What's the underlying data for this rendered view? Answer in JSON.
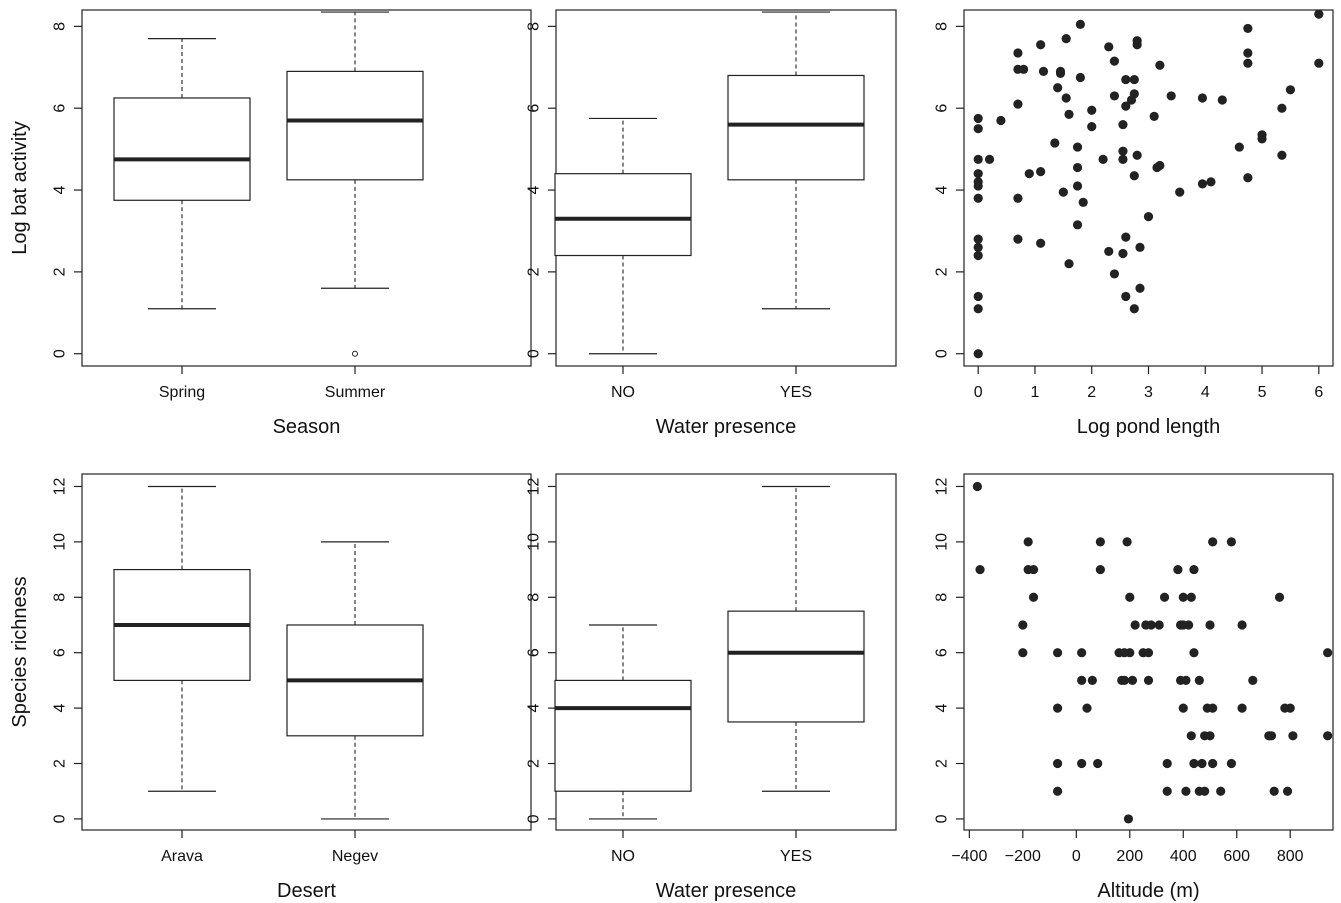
{
  "chart_data": [
    {
      "type": "box",
      "xlabel": "Season",
      "ylabel": "Log bat activity",
      "ylim": [
        -0.3,
        8.4
      ],
      "yticks": [
        0,
        2,
        4,
        6,
        8
      ],
      "ytick_labels": [
        "0",
        "2",
        "4",
        "6",
        "8"
      ],
      "categories": [
        "Spring",
        "Summer"
      ],
      "boxes": [
        {
          "whisker_low": 1.1,
          "q1": 3.75,
          "median": 4.75,
          "q3": 6.25,
          "whisker_high": 7.7,
          "outliers": []
        },
        {
          "whisker_low": 1.6,
          "q1": 4.25,
          "median": 5.7,
          "q3": 6.9,
          "whisker_high": 8.35,
          "outliers": [
            0.0
          ]
        }
      ]
    },
    {
      "type": "box",
      "xlabel": "Water presence",
      "ylabel": "",
      "ylim": [
        -0.3,
        8.4
      ],
      "yticks": [
        0,
        2,
        4,
        6,
        8
      ],
      "ytick_labels": [
        "0",
        "2",
        "4",
        "6",
        "8"
      ],
      "categories": [
        "NO",
        "YES"
      ],
      "boxes": [
        {
          "whisker_low": 0.0,
          "q1": 2.4,
          "median": 3.3,
          "q3": 4.4,
          "whisker_high": 5.75,
          "outliers": []
        },
        {
          "whisker_low": 1.1,
          "q1": 4.25,
          "median": 5.6,
          "q3": 6.8,
          "whisker_high": 8.35,
          "outliers": []
        }
      ]
    },
    {
      "type": "scatter",
      "xlabel": "Log pond length",
      "ylabel": "",
      "xlim": [
        -0.25,
        6.25
      ],
      "ylim": [
        -0.3,
        8.4
      ],
      "xticks": [
        0,
        1,
        2,
        3,
        4,
        5,
        6
      ],
      "xtick_labels": [
        "0",
        "1",
        "2",
        "3",
        "4",
        "5",
        "6"
      ],
      "yticks": [
        0,
        2,
        4,
        6,
        8
      ],
      "ytick_labels": [
        "0",
        "2",
        "4",
        "6",
        "8"
      ],
      "points": [
        [
          0,
          0
        ],
        [
          0,
          1.1
        ],
        [
          0,
          1.4
        ],
        [
          0,
          2.4
        ],
        [
          0,
          2.6
        ],
        [
          0,
          2.8
        ],
        [
          0,
          3.8
        ],
        [
          0,
          4.1
        ],
        [
          0,
          4.2
        ],
        [
          0,
          4.4
        ],
        [
          0,
          4.75
        ],
        [
          0,
          5.5
        ],
        [
          0,
          5.75
        ],
        [
          0.2,
          4.75
        ],
        [
          0.4,
          5.7
        ],
        [
          0.7,
          2.8
        ],
        [
          0.7,
          3.8
        ],
        [
          0.7,
          6.1
        ],
        [
          0.7,
          6.95
        ],
        [
          0.8,
          6.95
        ],
        [
          0.7,
          7.35
        ],
        [
          0.9,
          4.4
        ],
        [
          1.1,
          2.7
        ],
        [
          1.1,
          4.45
        ],
        [
          1.1,
          7.55
        ],
        [
          1.15,
          6.9
        ],
        [
          1.35,
          5.15
        ],
        [
          1.4,
          6.5
        ],
        [
          1.45,
          6.85
        ],
        [
          1.45,
          6.9
        ],
        [
          1.5,
          3.95
        ],
        [
          1.55,
          6.25
        ],
        [
          1.55,
          7.7
        ],
        [
          1.6,
          5.85
        ],
        [
          1.6,
          2.2
        ],
        [
          1.75,
          3.15
        ],
        [
          1.75,
          4.1
        ],
        [
          1.75,
          4.55
        ],
        [
          1.75,
          5.05
        ],
        [
          1.8,
          6.75
        ],
        [
          1.8,
          8.05
        ],
        [
          1.85,
          3.7
        ],
        [
          2.0,
          5.55
        ],
        [
          2.0,
          5.95
        ],
        [
          2.2,
          4.75
        ],
        [
          2.3,
          2.5
        ],
        [
          2.3,
          7.5
        ],
        [
          2.4,
          1.95
        ],
        [
          2.4,
          6.3
        ],
        [
          2.4,
          7.15
        ],
        [
          2.55,
          2.45
        ],
        [
          2.55,
          4.75
        ],
        [
          2.55,
          4.95
        ],
        [
          2.55,
          5.6
        ],
        [
          2.6,
          1.4
        ],
        [
          2.6,
          2.85
        ],
        [
          2.6,
          6.05
        ],
        [
          2.6,
          6.7
        ],
        [
          2.7,
          6.2
        ],
        [
          2.75,
          1.1
        ],
        [
          2.75,
          4.35
        ],
        [
          2.75,
          6.35
        ],
        [
          2.75,
          6.7
        ],
        [
          2.8,
          4.85
        ],
        [
          2.8,
          7.55
        ],
        [
          2.8,
          7.65
        ],
        [
          2.85,
          1.6
        ],
        [
          2.85,
          2.6
        ],
        [
          3.0,
          3.35
        ],
        [
          3.1,
          5.8
        ],
        [
          3.15,
          4.55
        ],
        [
          3.2,
          4.6
        ],
        [
          3.2,
          7.05
        ],
        [
          3.4,
          6.3
        ],
        [
          3.55,
          3.95
        ],
        [
          3.95,
          4.15
        ],
        [
          3.95,
          6.25
        ],
        [
          4.1,
          4.2
        ],
        [
          4.3,
          6.2
        ],
        [
          4.6,
          5.05
        ],
        [
          4.75,
          4.3
        ],
        [
          4.75,
          7.1
        ],
        [
          4.75,
          7.35
        ],
        [
          4.75,
          7.95
        ],
        [
          5.0,
          5.25
        ],
        [
          5.0,
          5.35
        ],
        [
          5.35,
          4.85
        ],
        [
          5.35,
          6.0
        ],
        [
          5.5,
          6.45
        ],
        [
          6.0,
          7.1
        ],
        [
          6.0,
          8.3
        ]
      ]
    },
    {
      "type": "box",
      "xlabel": "Desert",
      "ylabel": "Species richness",
      "ylim": [
        -0.4,
        12.45
      ],
      "yticks": [
        0,
        2,
        4,
        6,
        8,
        10,
        12
      ],
      "ytick_labels": [
        "0",
        "2",
        "4",
        "6",
        "8",
        "10",
        "12"
      ],
      "categories": [
        "Arava",
        "Negev"
      ],
      "boxes": [
        {
          "whisker_low": 1,
          "q1": 5,
          "median": 7,
          "q3": 9,
          "whisker_high": 12,
          "outliers": []
        },
        {
          "whisker_low": 0,
          "q1": 3,
          "median": 5,
          "q3": 7,
          "whisker_high": 10,
          "outliers": []
        }
      ]
    },
    {
      "type": "box",
      "xlabel": "Water presence",
      "ylabel": "",
      "ylim": [
        -0.4,
        12.45
      ],
      "yticks": [
        0,
        2,
        4,
        6,
        8,
        10,
        12
      ],
      "ytick_labels": [
        "0",
        "2",
        "4",
        "6",
        "8",
        "10",
        "12"
      ],
      "categories": [
        "NO",
        "YES"
      ],
      "boxes": [
        {
          "whisker_low": 0,
          "q1": 1,
          "median": 4,
          "q3": 5,
          "whisker_high": 7,
          "outliers": []
        },
        {
          "whisker_low": 1,
          "q1": 3.5,
          "median": 6,
          "q3": 7.5,
          "whisker_high": 12,
          "outliers": []
        }
      ]
    },
    {
      "type": "scatter",
      "xlabel": "Altitude (m)",
      "ylabel": "",
      "xlim": [
        -420,
        960
      ],
      "ylim": [
        -0.4,
        12.45
      ],
      "xticks": [
        -400,
        -200,
        0,
        200,
        400,
        600,
        800
      ],
      "xtick_labels": [
        "−400",
        "−200",
        "0",
        "200",
        "400",
        "600",
        "800"
      ],
      "yticks": [
        0,
        2,
        4,
        6,
        8,
        10,
        12
      ],
      "ytick_labels": [
        "0",
        "2",
        "4",
        "6",
        "8",
        "10",
        "12"
      ],
      "points": [
        [
          -370,
          12
        ],
        [
          -360,
          9
        ],
        [
          -200,
          7
        ],
        [
          -200,
          6
        ],
        [
          -180,
          10
        ],
        [
          -180,
          9
        ],
        [
          -160,
          9
        ],
        [
          -160,
          8
        ],
        [
          -70,
          6
        ],
        [
          -70,
          4
        ],
        [
          -70,
          2
        ],
        [
          -70,
          1
        ],
        [
          20,
          6
        ],
        [
          20,
          5
        ],
        [
          20,
          2
        ],
        [
          40,
          4
        ],
        [
          60,
          5
        ],
        [
          80,
          2
        ],
        [
          90,
          10
        ],
        [
          90,
          9
        ],
        [
          160,
          6
        ],
        [
          170,
          5
        ],
        [
          180,
          6
        ],
        [
          180,
          5
        ],
        [
          190,
          10
        ],
        [
          195,
          0
        ],
        [
          200,
          8
        ],
        [
          200,
          6
        ],
        [
          210,
          5
        ],
        [
          220,
          7
        ],
        [
          250,
          6
        ],
        [
          260,
          7
        ],
        [
          270,
          5
        ],
        [
          270,
          6
        ],
        [
          280,
          7
        ],
        [
          310,
          7
        ],
        [
          330,
          8
        ],
        [
          340,
          2
        ],
        [
          340,
          1
        ],
        [
          380,
          9
        ],
        [
          390,
          5
        ],
        [
          390,
          7
        ],
        [
          400,
          7
        ],
        [
          400,
          8
        ],
        [
          400,
          4
        ],
        [
          410,
          1
        ],
        [
          410,
          5
        ],
        [
          420,
          7
        ],
        [
          430,
          8
        ],
        [
          430,
          3
        ],
        [
          440,
          2
        ],
        [
          440,
          6
        ],
        [
          440,
          9
        ],
        [
          460,
          5
        ],
        [
          460,
          1
        ],
        [
          470,
          2
        ],
        [
          480,
          1
        ],
        [
          480,
          3
        ],
        [
          490,
          4
        ],
        [
          500,
          7
        ],
        [
          500,
          3
        ],
        [
          510,
          2
        ],
        [
          510,
          10
        ],
        [
          510,
          4
        ],
        [
          540,
          1
        ],
        [
          580,
          10
        ],
        [
          580,
          2
        ],
        [
          620,
          7
        ],
        [
          620,
          4
        ],
        [
          660,
          5
        ],
        [
          720,
          3
        ],
        [
          730,
          3
        ],
        [
          740,
          1
        ],
        [
          760,
          8
        ],
        [
          780,
          4
        ],
        [
          790,
          1
        ],
        [
          800,
          4
        ],
        [
          810,
          3
        ],
        [
          940,
          6
        ],
        [
          940,
          3
        ]
      ]
    }
  ]
}
